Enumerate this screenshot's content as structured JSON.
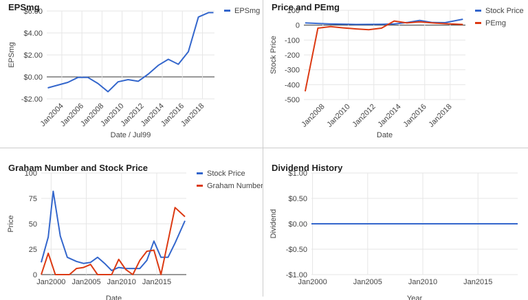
{
  "colors": {
    "blue": "#3366cc",
    "red": "#dc3912",
    "grid": "#e6e6e6",
    "axis": "#333333",
    "text": "#444444",
    "title": "#222222"
  },
  "chart_data": [
    {
      "type": "line",
      "title": "EPSmg",
      "xlabel": "Date / Jul99",
      "ylabel": "EPSmg",
      "ylim": [
        -2,
        6
      ],
      "yticks": [
        6,
        4,
        2,
        0,
        -2
      ],
      "ytick_labels": [
        "$6.00",
        "$4.00",
        "$2.00",
        "$0.00",
        "-$2.00"
      ],
      "xlim": [
        2002.5,
        2019.2
      ],
      "xticks": [
        2004,
        2006,
        2008,
        2010,
        2012,
        2014,
        2016,
        2018
      ],
      "xtick_labels": [
        "Jan2004",
        "Jan2006",
        "Jan2008",
        "Jan2010",
        "Jan2012",
        "Jan2014",
        "Jan2016",
        "Jan2018"
      ],
      "legend_position": "right",
      "grid": true,
      "series": [
        {
          "name": "EPSmg",
          "color": "#3366cc",
          "x": [
            2002.6,
            2003.6,
            2004.6,
            2005.6,
            2006.6,
            2007.6,
            2008.6,
            2009.6,
            2010.6,
            2011.6,
            2012.6,
            2013.6,
            2014.6,
            2015.6,
            2016.6,
            2017.6,
            2018.6,
            2019.1
          ],
          "values": [
            -1.0,
            -0.75,
            -0.5,
            -0.05,
            -0.05,
            -0.6,
            -1.35,
            -0.45,
            -0.25,
            -0.4,
            0.25,
            1.05,
            1.6,
            1.15,
            2.3,
            5.45,
            5.85,
            5.85
          ]
        }
      ]
    },
    {
      "type": "line",
      "title": "Price and PEmg",
      "xlabel": "Date",
      "ylabel": "Stock Price",
      "ylim": [
        -500,
        100
      ],
      "yticks": [
        100,
        0,
        -100,
        -200,
        -300,
        -400,
        -500
      ],
      "ytick_labels": [
        "100",
        "0",
        "-100",
        "-200",
        "-300",
        "-400",
        "-500"
      ],
      "xlim": [
        2006.5,
        2019.2
      ],
      "xticks": [
        2008,
        2010,
        2012,
        2014,
        2016,
        2018
      ],
      "xtick_labels": [
        "Jan2008",
        "Jan2010",
        "Jan2012",
        "Jan2014",
        "Jan2016",
        "Jan2018"
      ],
      "legend_position": "right",
      "grid": true,
      "series": [
        {
          "name": "Stock Price",
          "color": "#3366cc",
          "x": [
            2006.6,
            2008.6,
            2010.6,
            2012.6,
            2013.6,
            2014.6,
            2015.6,
            2016.6,
            2017.6,
            2019.0
          ],
          "values": [
            15,
            8,
            5,
            6,
            8,
            18,
            32,
            18,
            17,
            40
          ]
        },
        {
          "name": "PEmg",
          "color": "#dc3912",
          "x": [
            2006.6,
            2007.6,
            2008.6,
            2009.6,
            2010.6,
            2011.6,
            2012.6,
            2013.6,
            2014.6,
            2015.6,
            2016.6,
            2017.6,
            2019.0
          ],
          "values": [
            -445,
            -20,
            -10,
            -18,
            -25,
            -30,
            -20,
            28,
            15,
            22,
            15,
            10,
            5
          ]
        }
      ]
    },
    {
      "type": "line",
      "title": "Graham Number and Stock Price",
      "xlabel": "Date",
      "ylabel": "Price",
      "ylim": [
        0,
        100
      ],
      "yticks": [
        100,
        75,
        50,
        25,
        0
      ],
      "ytick_labels": [
        "100",
        "75",
        "50",
        "25",
        "0"
      ],
      "xlim": [
        1998.6,
        2019.2
      ],
      "xticks": [
        2000,
        2005,
        2010,
        2015
      ],
      "xtick_labels": [
        "Jan2000",
        "Jan2005",
        "Jan2010",
        "Jan2015"
      ],
      "legend_position": "right",
      "grid": true,
      "series": [
        {
          "name": "Stock Price",
          "color": "#3366cc",
          "x": [
            1998.6,
            1999.6,
            2000.3,
            2001.3,
            2002.3,
            2003.6,
            2004.6,
            2005.6,
            2006.6,
            2007.6,
            2008.6,
            2009.6,
            2010.6,
            2011.6,
            2012.6,
            2013.6,
            2014.6,
            2015.6,
            2016.6,
            2017.6,
            2019.0
          ],
          "values": [
            12,
            37,
            82,
            38,
            17,
            13,
            11,
            12,
            17,
            11,
            4,
            7,
            6,
            6,
            6,
            14,
            33,
            17,
            17,
            31,
            53
          ]
        },
        {
          "name": "Graham Number",
          "color": "#dc3912",
          "x": [
            1998.6,
            1999.6,
            2000.6,
            2001.6,
            2002.6,
            2003.6,
            2004.6,
            2005.6,
            2006.6,
            2007.6,
            2008.6,
            2009.6,
            2010.6,
            2011.6,
            2012.6,
            2013.6,
            2014.6,
            2015.6,
            2016.6,
            2017.6,
            2019.0
          ],
          "values": [
            0,
            21,
            0,
            0,
            0,
            6,
            7,
            10,
            0,
            0,
            0,
            15,
            5,
            0,
            14,
            23,
            24,
            0,
            33,
            66,
            57
          ]
        }
      ]
    },
    {
      "type": "line",
      "title": "Dividend History",
      "xlabel": "Year",
      "ylabel": "Dividend",
      "ylim": [
        -1,
        1
      ],
      "yticks": [
        1,
        0.5,
        0,
        -0.5,
        -1
      ],
      "ytick_labels": [
        "$1.00",
        "$0.50",
        "$0.00",
        "-$0.50",
        "-$1.00"
      ],
      "xlim": [
        1999.9,
        2018.6
      ],
      "xticks": [
        2000,
        2005,
        2010,
        2015
      ],
      "xtick_labels": [
        "Jan2000",
        "Jan2005",
        "Jan2010",
        "Jan2015"
      ],
      "grid": true,
      "series": [
        {
          "color": "#3366cc",
          "x": [
            1999.9,
            2018.6
          ],
          "values": [
            0,
            0
          ]
        }
      ]
    }
  ]
}
